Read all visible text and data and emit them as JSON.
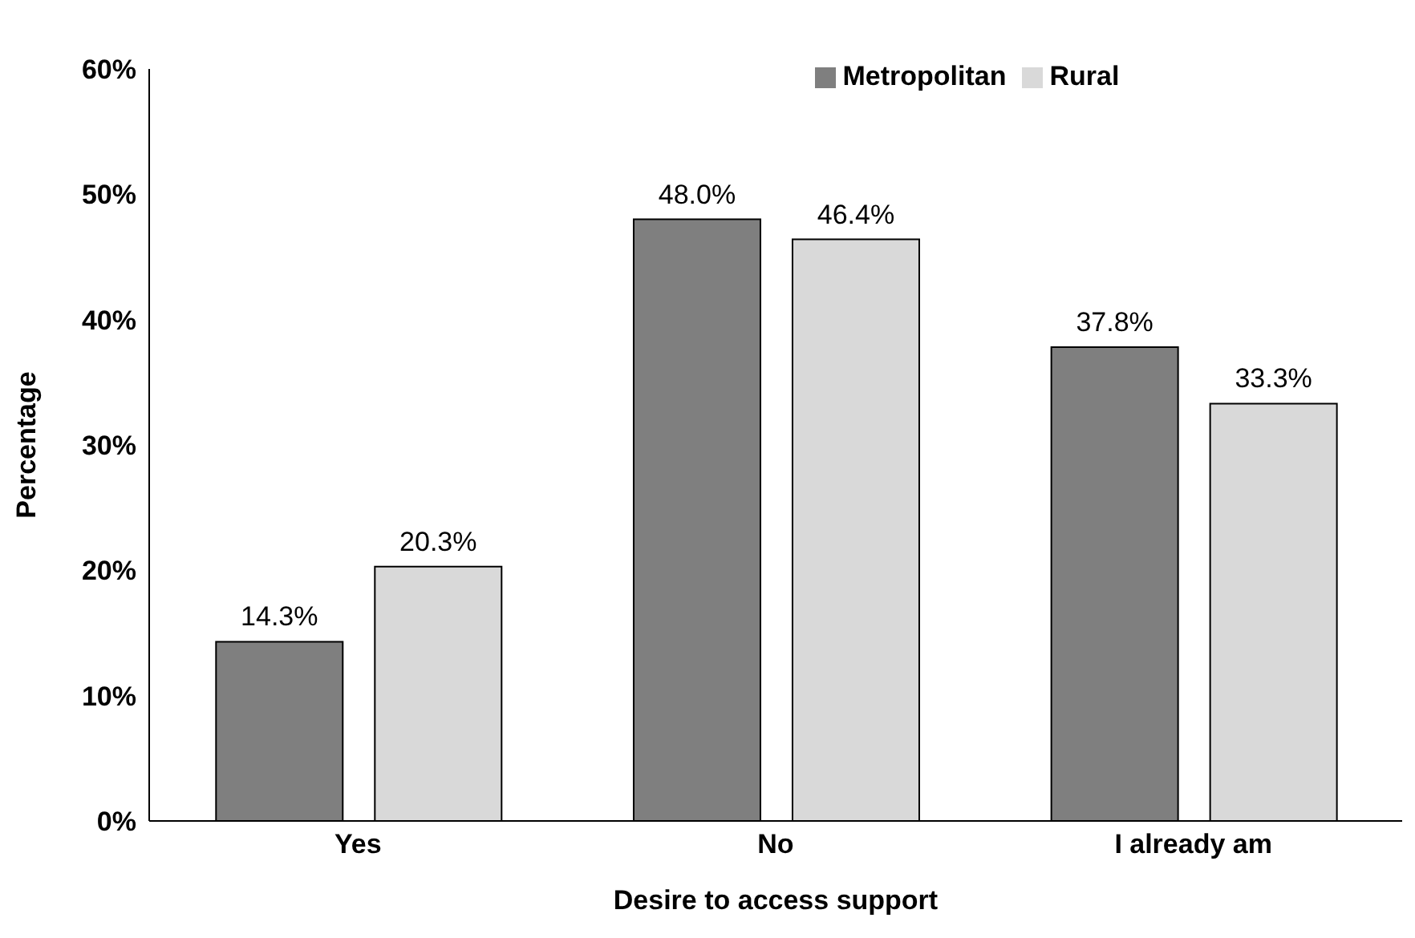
{
  "chart_data": {
    "type": "bar",
    "xlabel": "Desire to access support",
    "ylabel": "Percentage",
    "categories": [
      "Yes",
      "No",
      "I already am"
    ],
    "series": [
      {
        "name": "Metropolitan",
        "color": "#7f7f7f",
        "values": [
          14.3,
          48.0,
          37.8
        ],
        "value_labels": [
          "14.3%",
          "48.0%",
          "37.8%"
        ]
      },
      {
        "name": "Rural",
        "color": "#d9d9d9",
        "values": [
          20.3,
          46.4,
          33.3
        ],
        "value_labels": [
          "20.3%",
          "46.4%",
          "33.3%"
        ]
      }
    ],
    "ylim": [
      0,
      60
    ],
    "yticks": [
      {
        "value": 0,
        "label": "0%"
      },
      {
        "value": 10,
        "label": "10%"
      },
      {
        "value": 20,
        "label": "20%"
      },
      {
        "value": 30,
        "label": "30%"
      },
      {
        "value": 40,
        "label": "40%"
      },
      {
        "value": 50,
        "label": "50%"
      },
      {
        "value": 60,
        "label": "60%"
      }
    ],
    "grid": false,
    "legend": "top"
  }
}
